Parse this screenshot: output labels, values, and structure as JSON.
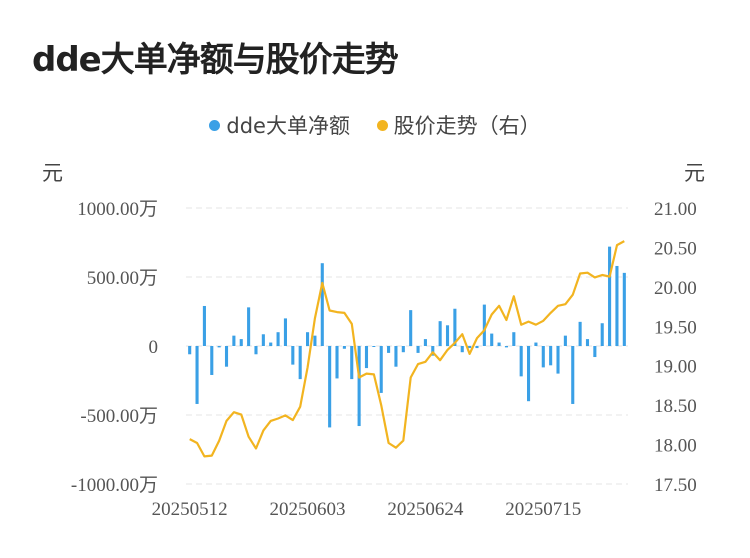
{
  "title": "dde大单净额与股价走势",
  "legend": {
    "dde": "dde大单净额",
    "price": "股价走势（右）"
  },
  "units": {
    "left": "元",
    "right": "元"
  },
  "colors": {
    "bar": "#3aa0e6",
    "line": "#f2b420",
    "grid": "#e6e6e6"
  },
  "chart_data": {
    "type": "bar+line",
    "left_axis": {
      "ticks": [
        "1000.00万",
        "500.00万",
        "0",
        "-500.00万",
        "-1000.00万"
      ],
      "ylim": [
        -1000,
        1000
      ]
    },
    "right_axis": {
      "ticks": [
        "21.00",
        "20.50",
        "20.00",
        "19.50",
        "19.00",
        "18.50",
        "18.00",
        "17.50"
      ],
      "ylim": [
        17.5,
        21.0
      ]
    },
    "x_tick_labels": [
      "20250512",
      "20250603",
      "20250624",
      "20250715"
    ],
    "x_tick_index": [
      0,
      16,
      32,
      48
    ],
    "series": [
      {
        "name": "dde大单净额",
        "type": "bar",
        "unit": "万",
        "values": [
          -60,
          -420,
          290,
          -210,
          -10,
          -150,
          75,
          50,
          280,
          -60,
          85,
          25,
          100,
          200,
          -135,
          -240,
          100,
          75,
          600,
          -590,
          -235,
          -20,
          -240,
          -580,
          -160,
          -5,
          -340,
          -50,
          -150,
          -45,
          260,
          -50,
          50,
          -70,
          180,
          150,
          270,
          -45,
          -15,
          -15,
          300,
          90,
          25,
          -10,
          100,
          -220,
          -400,
          25,
          -155,
          -140,
          -200,
          75,
          -420,
          175,
          50,
          -80,
          165,
          720,
          580,
          530
        ]
      },
      {
        "name": "股价走势（右）",
        "type": "line",
        "values": [
          18.07,
          18.02,
          17.85,
          17.86,
          18.05,
          18.3,
          18.41,
          18.38,
          18.1,
          17.95,
          18.18,
          18.3,
          18.33,
          18.37,
          18.31,
          18.48,
          18.98,
          19.6,
          20.05,
          19.7,
          19.68,
          19.67,
          19.53,
          18.85,
          18.9,
          18.89,
          18.5,
          18.02,
          17.96,
          18.05,
          18.85,
          19.02,
          19.05,
          19.17,
          19.07,
          19.2,
          19.29,
          19.4,
          19.15,
          19.35,
          19.45,
          19.65,
          19.76,
          19.58,
          19.88,
          19.52,
          19.56,
          19.52,
          19.57,
          19.67,
          19.76,
          19.78,
          19.9,
          20.17,
          20.18,
          20.12,
          20.15,
          20.13,
          20.53,
          20.58
        ]
      }
    ]
  }
}
